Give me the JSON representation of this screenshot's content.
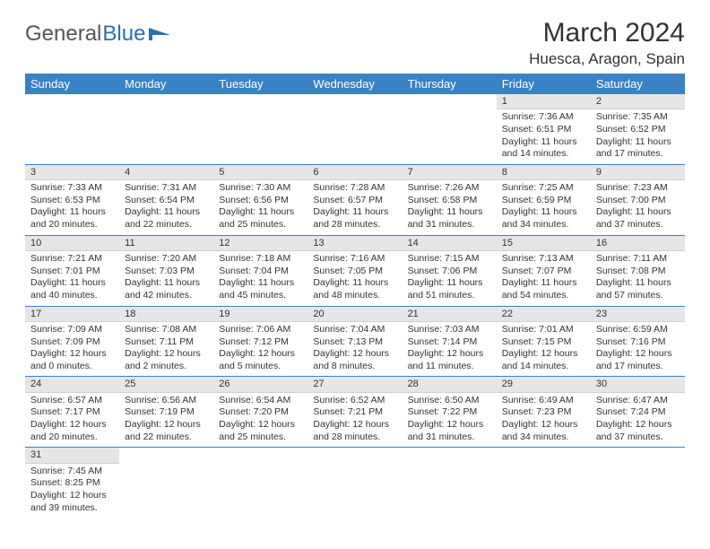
{
  "logo": {
    "text1": "General",
    "text2": "Blue"
  },
  "title": "March 2024",
  "location": "Huesca, Aragon, Spain",
  "colors": {
    "header_bg": "#3b82c4",
    "header_fg": "#ffffff",
    "daynum_bg": "#e6e6e6",
    "cell_border": "#3b82c4",
    "logo_accent": "#2a6fb5"
  },
  "weekdays": [
    "Sunday",
    "Monday",
    "Tuesday",
    "Wednesday",
    "Thursday",
    "Friday",
    "Saturday"
  ],
  "weeks": [
    [
      null,
      null,
      null,
      null,
      null,
      {
        "n": "1",
        "sr": "7:36 AM",
        "ss": "6:51 PM",
        "dl": "11 hours and 14 minutes."
      },
      {
        "n": "2",
        "sr": "7:35 AM",
        "ss": "6:52 PM",
        "dl": "11 hours and 17 minutes."
      }
    ],
    [
      {
        "n": "3",
        "sr": "7:33 AM",
        "ss": "6:53 PM",
        "dl": "11 hours and 20 minutes."
      },
      {
        "n": "4",
        "sr": "7:31 AM",
        "ss": "6:54 PM",
        "dl": "11 hours and 22 minutes."
      },
      {
        "n": "5",
        "sr": "7:30 AM",
        "ss": "6:56 PM",
        "dl": "11 hours and 25 minutes."
      },
      {
        "n": "6",
        "sr": "7:28 AM",
        "ss": "6:57 PM",
        "dl": "11 hours and 28 minutes."
      },
      {
        "n": "7",
        "sr": "7:26 AM",
        "ss": "6:58 PM",
        "dl": "11 hours and 31 minutes."
      },
      {
        "n": "8",
        "sr": "7:25 AM",
        "ss": "6:59 PM",
        "dl": "11 hours and 34 minutes."
      },
      {
        "n": "9",
        "sr": "7:23 AM",
        "ss": "7:00 PM",
        "dl": "11 hours and 37 minutes."
      }
    ],
    [
      {
        "n": "10",
        "sr": "7:21 AM",
        "ss": "7:01 PM",
        "dl": "11 hours and 40 minutes."
      },
      {
        "n": "11",
        "sr": "7:20 AM",
        "ss": "7:03 PM",
        "dl": "11 hours and 42 minutes."
      },
      {
        "n": "12",
        "sr": "7:18 AM",
        "ss": "7:04 PM",
        "dl": "11 hours and 45 minutes."
      },
      {
        "n": "13",
        "sr": "7:16 AM",
        "ss": "7:05 PM",
        "dl": "11 hours and 48 minutes."
      },
      {
        "n": "14",
        "sr": "7:15 AM",
        "ss": "7:06 PM",
        "dl": "11 hours and 51 minutes."
      },
      {
        "n": "15",
        "sr": "7:13 AM",
        "ss": "7:07 PM",
        "dl": "11 hours and 54 minutes."
      },
      {
        "n": "16",
        "sr": "7:11 AM",
        "ss": "7:08 PM",
        "dl": "11 hours and 57 minutes."
      }
    ],
    [
      {
        "n": "17",
        "sr": "7:09 AM",
        "ss": "7:09 PM",
        "dl": "12 hours and 0 minutes."
      },
      {
        "n": "18",
        "sr": "7:08 AM",
        "ss": "7:11 PM",
        "dl": "12 hours and 2 minutes."
      },
      {
        "n": "19",
        "sr": "7:06 AM",
        "ss": "7:12 PM",
        "dl": "12 hours and 5 minutes."
      },
      {
        "n": "20",
        "sr": "7:04 AM",
        "ss": "7:13 PM",
        "dl": "12 hours and 8 minutes."
      },
      {
        "n": "21",
        "sr": "7:03 AM",
        "ss": "7:14 PM",
        "dl": "12 hours and 11 minutes."
      },
      {
        "n": "22",
        "sr": "7:01 AM",
        "ss": "7:15 PM",
        "dl": "12 hours and 14 minutes."
      },
      {
        "n": "23",
        "sr": "6:59 AM",
        "ss": "7:16 PM",
        "dl": "12 hours and 17 minutes."
      }
    ],
    [
      {
        "n": "24",
        "sr": "6:57 AM",
        "ss": "7:17 PM",
        "dl": "12 hours and 20 minutes."
      },
      {
        "n": "25",
        "sr": "6:56 AM",
        "ss": "7:19 PM",
        "dl": "12 hours and 22 minutes."
      },
      {
        "n": "26",
        "sr": "6:54 AM",
        "ss": "7:20 PM",
        "dl": "12 hours and 25 minutes."
      },
      {
        "n": "27",
        "sr": "6:52 AM",
        "ss": "7:21 PM",
        "dl": "12 hours and 28 minutes."
      },
      {
        "n": "28",
        "sr": "6:50 AM",
        "ss": "7:22 PM",
        "dl": "12 hours and 31 minutes."
      },
      {
        "n": "29",
        "sr": "6:49 AM",
        "ss": "7:23 PM",
        "dl": "12 hours and 34 minutes."
      },
      {
        "n": "30",
        "sr": "6:47 AM",
        "ss": "7:24 PM",
        "dl": "12 hours and 37 minutes."
      }
    ],
    [
      {
        "n": "31",
        "sr": "7:45 AM",
        "ss": "8:25 PM",
        "dl": "12 hours and 39 minutes."
      },
      null,
      null,
      null,
      null,
      null,
      null
    ]
  ],
  "labels": {
    "sunrise": "Sunrise:",
    "sunset": "Sunset:",
    "daylight": "Daylight:"
  }
}
